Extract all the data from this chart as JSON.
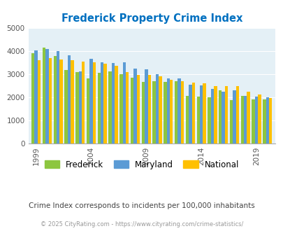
{
  "title": "Frederick Property Crime Index",
  "years": [
    1999,
    2000,
    2001,
    2002,
    2003,
    2004,
    2005,
    2006,
    2007,
    2008,
    2009,
    2010,
    2011,
    2012,
    2013,
    2014,
    2015,
    2016,
    2017,
    2018,
    2019,
    2020
  ],
  "frederick": [
    3900,
    4150,
    3780,
    3160,
    3080,
    2800,
    3060,
    3100,
    3000,
    2830,
    2650,
    2700,
    2650,
    2700,
    2050,
    2030,
    2000,
    2280,
    1870,
    2060,
    1900,
    1910
  ],
  "maryland": [
    4010,
    4080,
    4000,
    3820,
    3100,
    3640,
    3500,
    3460,
    3500,
    3230,
    3210,
    2980,
    2800,
    2820,
    2520,
    2510,
    2340,
    2220,
    2280,
    2040,
    2020,
    1990
  ],
  "national": [
    3600,
    3680,
    3620,
    3580,
    3530,
    3490,
    3440,
    3360,
    3070,
    2960,
    2960,
    2910,
    2760,
    2700,
    2610,
    2590,
    2470,
    2460,
    2480,
    2220,
    2110,
    1960
  ],
  "frederick_color": "#8dc63f",
  "maryland_color": "#5b9bd5",
  "national_color": "#ffc000",
  "plot_bg": "#e4f0f6",
  "ylim": [
    0,
    5000
  ],
  "yticks": [
    0,
    1000,
    2000,
    3000,
    4000,
    5000
  ],
  "xlabel_ticks": [
    1999,
    2004,
    2009,
    2014,
    2019
  ],
  "subtitle": "Crime Index corresponds to incidents per 100,000 inhabitants",
  "footer": "© 2025 CityRating.com - https://www.cityrating.com/crime-statistics/",
  "title_color": "#0070c0",
  "subtitle_color": "#444444",
  "footer_color": "#999999"
}
